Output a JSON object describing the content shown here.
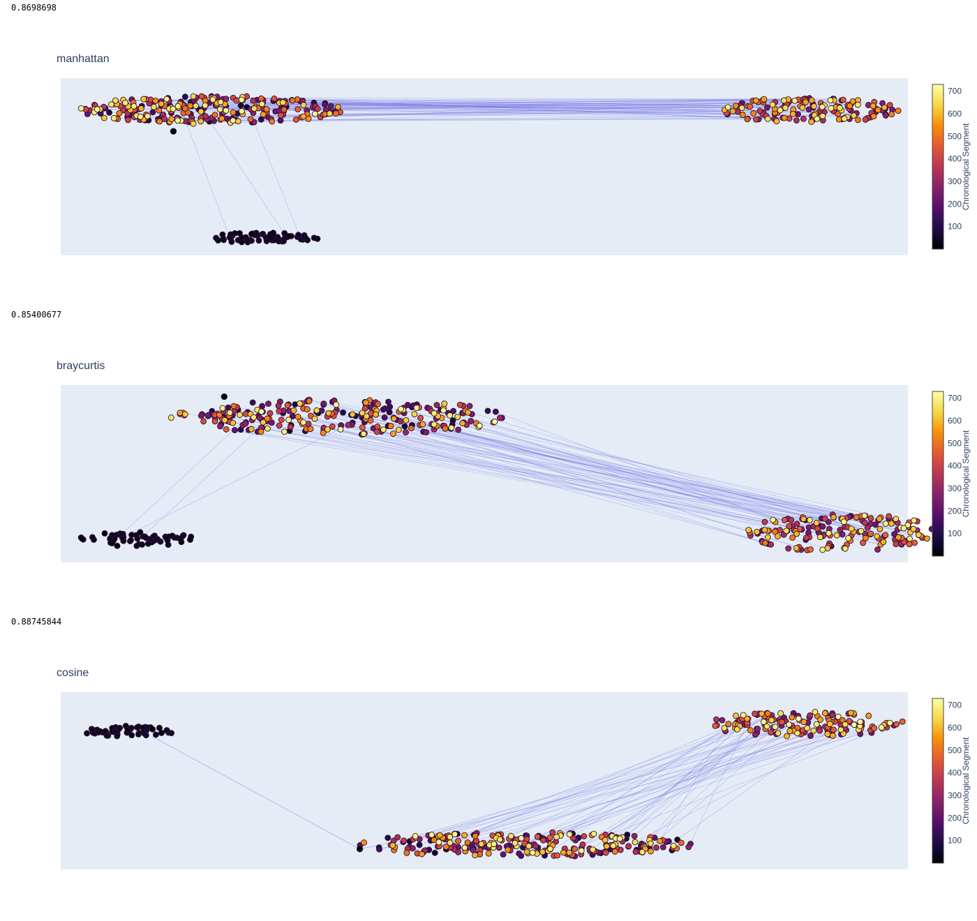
{
  "colors": {
    "plot_bg": "#e5ecf6",
    "edge": "#6a6ae6",
    "marker_outline": "#2b1230",
    "colorscale": [
      "#000004",
      "#1f0c48",
      "#550f6d",
      "#88226a",
      "#ba3655",
      "#e35933",
      "#f98e09",
      "#f6d746",
      "#fcffa4"
    ]
  },
  "panels": [
    {
      "score": "0.8698698",
      "chart_data": {
        "type": "scatter",
        "title": "manhattan",
        "colorbar": {
          "title": "Chronological Segment",
          "range": [
            0,
            730
          ],
          "ticks": [
            100,
            200,
            300,
            400,
            500,
            600,
            700
          ]
        },
        "xlim": [
          0,
          100
        ],
        "ylim": [
          0,
          100
        ],
        "clusters": [
          {
            "cx": 18,
            "cy": 82,
            "rx": 16,
            "ry": 8,
            "n": 260,
            "cmin": 50,
            "cmax": 720
          },
          {
            "cx": 88,
            "cy": 82,
            "rx": 11,
            "ry": 7,
            "n": 150,
            "cmin": 180,
            "cmax": 720
          },
          {
            "cx": 24,
            "cy": 10,
            "rx": 6.5,
            "ry": 3,
            "n": 60,
            "cmin": 0,
            "cmax": 60
          }
        ],
        "edge_groups": [
          {
            "from": 0,
            "to": 1,
            "count": 60
          },
          {
            "from": 0,
            "to": 2,
            "count": 3
          }
        ],
        "singletons": [
          {
            "x": 13.3,
            "y": 70,
            "c": 20
          }
        ]
      }
    },
    {
      "score": "0.85400677",
      "chart_data": {
        "type": "scatter",
        "title": "braycurtis",
        "colorbar": {
          "title": "Chronological Segment",
          "range": [
            0,
            730
          ],
          "ticks": [
            100,
            200,
            300,
            400,
            500,
            600,
            700
          ]
        },
        "xlim": [
          0,
          100
        ],
        "ylim": [
          0,
          100
        ],
        "clusters": [
          {
            "cx": 33,
            "cy": 82,
            "rx": 20,
            "ry": 10,
            "n": 260,
            "cmin": 50,
            "cmax": 720
          },
          {
            "cx": 92,
            "cy": 17,
            "rx": 11,
            "ry": 11,
            "n": 170,
            "cmin": 150,
            "cmax": 720
          },
          {
            "cx": 9,
            "cy": 13,
            "rx": 7,
            "ry": 4,
            "n": 60,
            "cmin": 0,
            "cmax": 60
          }
        ],
        "edge_groups": [
          {
            "from": 0,
            "to": 1,
            "count": 60
          },
          {
            "from": 2,
            "to": 0,
            "count": 3
          }
        ],
        "singletons": [
          {
            "x": 19.3,
            "y": 93.5,
            "c": 20
          }
        ]
      }
    },
    {
      "score": "0.88745844",
      "chart_data": {
        "type": "scatter",
        "title": "cosine",
        "colorbar": {
          "title": "Chronological Segment",
          "range": [
            0,
            730
          ],
          "ticks": [
            100,
            200,
            300,
            400,
            500,
            600,
            700
          ]
        },
        "xlim": [
          0,
          100
        ],
        "ylim": [
          0,
          100
        ],
        "clusters": [
          {
            "cx": 8,
            "cy": 78,
            "rx": 5.5,
            "ry": 3,
            "n": 55,
            "cmin": 0,
            "cmax": 60
          },
          {
            "cx": 55,
            "cy": 14,
            "rx": 20,
            "ry": 7,
            "n": 260,
            "cmin": 50,
            "cmax": 720
          },
          {
            "cx": 88,
            "cy": 82,
            "rx": 12,
            "ry": 7,
            "n": 150,
            "cmin": 180,
            "cmax": 720
          }
        ],
        "edge_groups": [
          {
            "from": 1,
            "to": 2,
            "count": 50
          }
        ],
        "singletons": [
          {
            "x": 35.3,
            "y": 11.5,
            "c": 20
          }
        ],
        "paths": [
          [
            [
              10.8,
              75
            ],
            [
              35.3,
              11.5
            ],
            [
              44,
              20
            ]
          ]
        ]
      }
    }
  ]
}
